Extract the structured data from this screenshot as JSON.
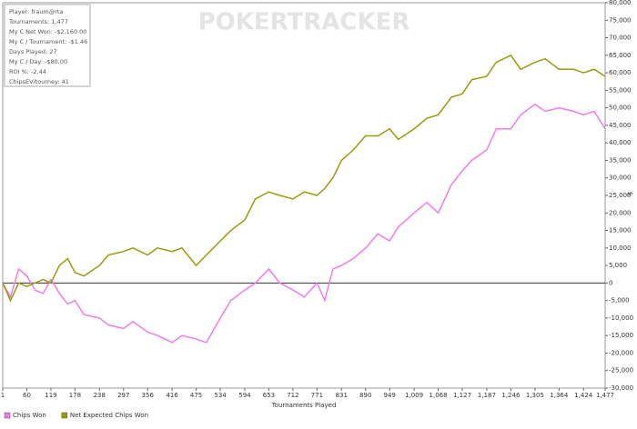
{
  "chart_data": {
    "type": "line",
    "watermark": "POKERTRACKER",
    "stats": [
      "Player: fraum@rta",
      "Tournaments: 1,477",
      "My C Net Won: -$2,160.00",
      "My C / Tournament: -$1.46",
      "Days Played: 27",
      "My C / Day: -$80.00",
      "ROI %: -2.44",
      "ChipsEV/tourney: 41"
    ],
    "x_label": "Tournaments Played",
    "y_label": "$",
    "x": [
      1,
      20,
      40,
      60,
      80,
      100,
      119,
      140,
      160,
      178,
      200,
      238,
      260,
      297,
      320,
      356,
      380,
      416,
      440,
      475,
      500,
      534,
      560,
      594,
      620,
      653,
      680,
      712,
      740,
      771,
      790,
      810,
      831,
      860,
      890,
      920,
      949,
      970,
      1009,
      1040,
      1068,
      1100,
      1127,
      1150,
      1187,
      1210,
      1246,
      1270,
      1305,
      1330,
      1364,
      1400,
      1424,
      1450,
      1477
    ],
    "series": [
      {
        "name": "Chips Won",
        "color": "#ee7cee",
        "values": [
          0,
          -4000,
          4000,
          2000,
          -2000,
          -3000,
          1000,
          -3000,
          -6000,
          -5000,
          -9000,
          -10000,
          -12000,
          -13000,
          -11000,
          -14000,
          -15000,
          -17000,
          -15000,
          -16000,
          -17000,
          -10000,
          -5000,
          -2000,
          0,
          4000,
          0,
          -2000,
          -4000,
          0,
          -5000,
          4000,
          5000,
          7000,
          10000,
          14000,
          12000,
          16000,
          20000,
          23000,
          20000,
          28000,
          32000,
          35000,
          38000,
          44000,
          44000,
          48000,
          51000,
          49000,
          50000,
          49000,
          48000,
          49000,
          44000
        ]
      },
      {
        "name": "Net Expected Chips Won",
        "color": "#9a9a10",
        "values": [
          0,
          -5000,
          0,
          -1000,
          0,
          1000,
          0,
          5000,
          7000,
          3000,
          2000,
          5000,
          8000,
          9000,
          10000,
          8000,
          10000,
          9000,
          10000,
          5000,
          8000,
          12000,
          15000,
          18000,
          24000,
          26000,
          25000,
          24000,
          26000,
          25000,
          27000,
          30000,
          35000,
          38000,
          42000,
          42000,
          44000,
          41000,
          44000,
          47000,
          48000,
          53000,
          54000,
          58000,
          59000,
          63000,
          65000,
          61000,
          63000,
          64000,
          61000,
          61000,
          60000,
          61000,
          59000
        ]
      }
    ],
    "xlim": [
      1,
      1477
    ],
    "xticks": [
      1,
      60,
      119,
      178,
      238,
      297,
      356,
      416,
      475,
      534,
      594,
      653,
      712,
      771,
      831,
      890,
      949,
      {
        "value": 1009,
        "label": "1,009"
      },
      {
        "value": 1068,
        "label": "1,068"
      },
      {
        "value": 1127,
        "label": "1,127"
      },
      {
        "value": 1187,
        "label": "1,187"
      },
      {
        "value": 1246,
        "label": "1,246"
      },
      {
        "value": 1305,
        "label": "1,305"
      },
      {
        "value": 1364,
        "label": "1,364"
      },
      {
        "value": 1424,
        "label": "1,424"
      },
      {
        "value": 1477,
        "label": "1,477"
      }
    ],
    "ylim": [
      -30000,
      80000
    ],
    "yticks": [
      {
        "value": -30000,
        "label": "-30,000"
      },
      {
        "value": -25000,
        "label": "-25,000"
      },
      {
        "value": -20000,
        "label": "-20,000"
      },
      {
        "value": -15000,
        "label": "-15,000"
      },
      {
        "value": -10000,
        "label": "-10,000"
      },
      {
        "value": -5000,
        "label": "-5,000"
      },
      0,
      {
        "value": 5000,
        "label": "5,000"
      },
      {
        "value": 10000,
        "label": "10,000"
      },
      {
        "value": 15000,
        "label": "15,000"
      },
      {
        "value": 20000,
        "label": "20,000"
      },
      {
        "value": 25000,
        "label": "25,000"
      },
      {
        "value": 30000,
        "label": "30,000"
      },
      {
        "value": 35000,
        "label": "35,000"
      },
      {
        "value": 40000,
        "label": "40,000"
      },
      {
        "value": 45000,
        "label": "45,000"
      },
      {
        "value": 50000,
        "label": "50,000"
      },
      {
        "value": 55000,
        "label": "55,000"
      },
      {
        "value": 60000,
        "label": "60,000"
      },
      {
        "value": 65000,
        "label": "65,000"
      },
      {
        "value": 70000,
        "label": "70,000"
      },
      {
        "value": 75000,
        "label": "75,000"
      },
      {
        "value": 80000,
        "label": "80,000"
      }
    ]
  }
}
